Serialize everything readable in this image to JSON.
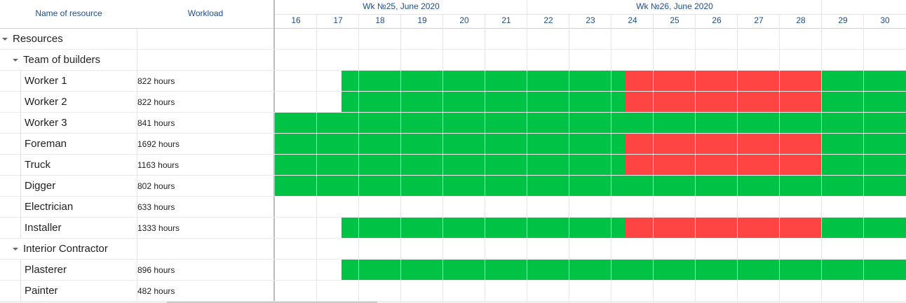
{
  "grid": {
    "columns": [
      "Name of resource",
      "Workload"
    ],
    "rows": [
      {
        "name": "Resources",
        "level": 0,
        "expanded": true
      },
      {
        "name": "Team of builders",
        "level": 1,
        "expanded": true
      },
      {
        "name": "Worker 1",
        "workload": "822 hours",
        "level": 2
      },
      {
        "name": "Worker 2",
        "workload": "822 hours",
        "level": 2
      },
      {
        "name": "Worker 3",
        "workload": "841 hours",
        "level": 2
      },
      {
        "name": "Foreman",
        "workload": "1692 hours",
        "level": 2
      },
      {
        "name": "Truck",
        "workload": "1163 hours",
        "level": 2
      },
      {
        "name": "Digger",
        "workload": "802 hours",
        "level": 2
      },
      {
        "name": "Electrician",
        "workload": "633 hours",
        "level": 2
      },
      {
        "name": "Installer",
        "workload": "1333 hours",
        "level": 2
      },
      {
        "name": "Interior Contractor",
        "level": 1,
        "expanded": true
      },
      {
        "name": "Plasterer",
        "workload": "896 hours",
        "level": 2
      },
      {
        "name": "Painter",
        "workload": "482 hours",
        "level": 2
      }
    ]
  },
  "timeline": {
    "weeks": [
      {
        "label": "Wk №25, June 2020",
        "days": 6
      },
      {
        "label": "Wk №26, June 2020",
        "days": 7
      }
    ],
    "days": [
      "16",
      "17",
      "18",
      "19",
      "20",
      "21",
      "22",
      "23",
      "24",
      "25",
      "26",
      "27",
      "28",
      "29",
      "30"
    ]
  }
}
